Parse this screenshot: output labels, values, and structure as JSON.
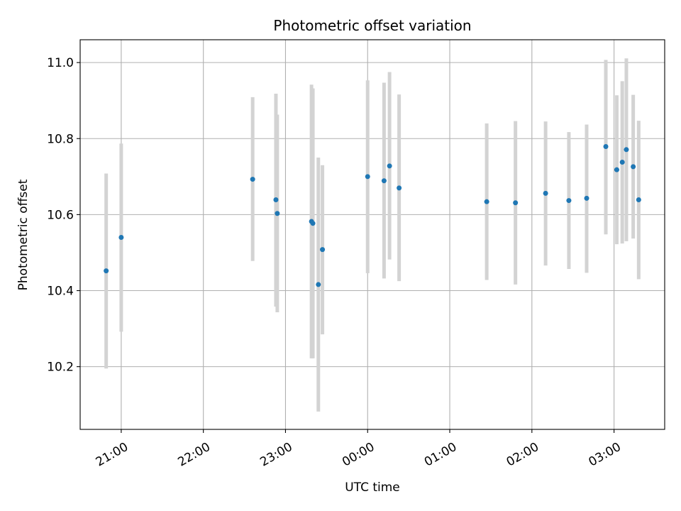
{
  "chart_data": {
    "type": "scatter",
    "title": "Photometric offset variation",
    "xlabel": "UTC time",
    "ylabel": "Photometric offset",
    "x_axis": "time",
    "x_range": [
      "20:30",
      "03:37"
    ],
    "ylim": [
      10.035,
      11.06
    ],
    "grid": true,
    "x_ticks": [
      "21:00",
      "22:00",
      "23:00",
      "00:00",
      "01:00",
      "02:00",
      "03:00"
    ],
    "y_ticks": [
      "10.2",
      "10.4",
      "10.6",
      "10.8",
      "11.0"
    ],
    "y_tick_values": [
      10.2,
      10.4,
      10.6,
      10.8,
      11.0
    ],
    "marker_color": "#1f77b4",
    "errorbar_color": "#d3d3d3",
    "points": [
      {
        "t": "20:49",
        "y": 10.452,
        "lo": 10.195,
        "hi": 10.708
      },
      {
        "t": "21:00",
        "y": 10.54,
        "lo": 10.292,
        "hi": 10.787
      },
      {
        "t": "22:36",
        "y": 10.693,
        "lo": 10.478,
        "hi": 10.909
      },
      {
        "t": "22:53",
        "y": 10.639,
        "lo": 10.358,
        "hi": 10.918
      },
      {
        "t": "22:54",
        "y": 10.603,
        "lo": 10.343,
        "hi": 10.863
      },
      {
        "t": "23:19",
        "y": 10.582,
        "lo": 10.222,
        "hi": 10.942
      },
      {
        "t": "23:20",
        "y": 10.577,
        "lo": 10.222,
        "hi": 10.932
      },
      {
        "t": "23:24",
        "y": 10.416,
        "lo": 10.082,
        "hi": 10.75
      },
      {
        "t": "23:27",
        "y": 10.508,
        "lo": 10.285,
        "hi": 10.73
      },
      {
        "t": "00:00",
        "y": 10.7,
        "lo": 10.446,
        "hi": 10.953
      },
      {
        "t": "00:12",
        "y": 10.689,
        "lo": 10.432,
        "hi": 10.947
      },
      {
        "t": "00:16",
        "y": 10.728,
        "lo": 10.482,
        "hi": 10.975
      },
      {
        "t": "00:23",
        "y": 10.67,
        "lo": 10.425,
        "hi": 10.916
      },
      {
        "t": "01:27",
        "y": 10.634,
        "lo": 10.428,
        "hi": 10.84
      },
      {
        "t": "01:48",
        "y": 10.631,
        "lo": 10.416,
        "hi": 10.846
      },
      {
        "t": "02:10",
        "y": 10.656,
        "lo": 10.466,
        "hi": 10.845
      },
      {
        "t": "02:27",
        "y": 10.637,
        "lo": 10.457,
        "hi": 10.817
      },
      {
        "t": "02:40",
        "y": 10.643,
        "lo": 10.447,
        "hi": 10.837
      },
      {
        "t": "02:54",
        "y": 10.779,
        "lo": 10.548,
        "hi": 11.007
      },
      {
        "t": "03:02",
        "y": 10.718,
        "lo": 10.522,
        "hi": 10.914
      },
      {
        "t": "03:06",
        "y": 10.738,
        "lo": 10.524,
        "hi": 10.951
      },
      {
        "t": "03:09",
        "y": 10.771,
        "lo": 10.53,
        "hi": 11.011
      },
      {
        "t": "03:14",
        "y": 10.726,
        "lo": 10.537,
        "hi": 10.915
      },
      {
        "t": "03:18",
        "y": 10.639,
        "lo": 10.43,
        "hi": 10.847
      }
    ]
  }
}
